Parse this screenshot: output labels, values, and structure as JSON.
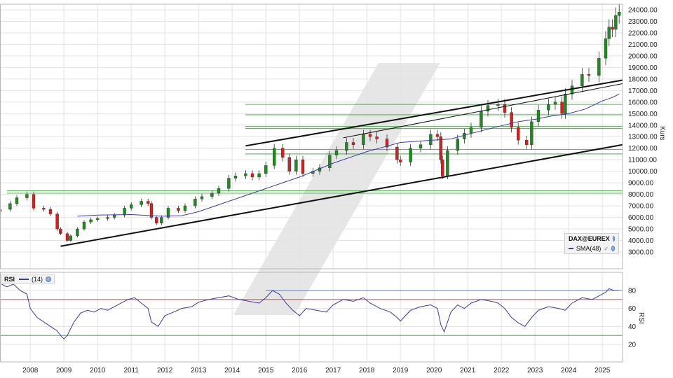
{
  "chart_data": [
    {
      "type": "candlestick",
      "symbol": "DAX@EUREX",
      "ylabel": "Kurs",
      "ylim": [
        2500,
        24500
      ],
      "ytick_labels": [
        "3000.00",
        "4000.00",
        "5000.00",
        "6000.00",
        "7000.00",
        "8000.00",
        "9000.00",
        "10000.00",
        "11000.00",
        "12000.00",
        "13000.00",
        "14000.00",
        "15000.00",
        "16000.00",
        "17000.00",
        "18000.00",
        "19000.00",
        "20000.00",
        "21000.00",
        "22000.00",
        "23000.00",
        "24000.00"
      ],
      "x_tick_labels": [
        "2008",
        "2009",
        "2010",
        "2011",
        "2012",
        "2013",
        "2014",
        "2015",
        "2016",
        "2017",
        "2018",
        "2019",
        "2020",
        "2021",
        "2022",
        "2023",
        "2024",
        "2025"
      ],
      "xlim": [
        2007.1,
        2025.6
      ],
      "legend": {
        "symbol": "DAX@EUREX",
        "sma_label": "SMA(48)"
      },
      "grid": true,
      "legend_position": "bottom-right",
      "price_series": {
        "name": "DAX@EUREX",
        "x": [
          2007.1,
          2007.4,
          2007.6,
          2007.9,
          2008.1,
          2008.4,
          2008.6,
          2008.8,
          2008.9,
          2009.1,
          2009.2,
          2009.4,
          2009.6,
          2009.8,
          2010.0,
          2010.3,
          2010.5,
          2010.8,
          2011.0,
          2011.3,
          2011.5,
          2011.6,
          2011.75,
          2011.9,
          2012.1,
          2012.4,
          2012.6,
          2012.9,
          2013.1,
          2013.4,
          2013.6,
          2013.9,
          2014.1,
          2014.4,
          2014.6,
          2014.8,
          2015.0,
          2015.25,
          2015.5,
          2015.7,
          2015.9,
          2016.1,
          2016.4,
          2016.6,
          2016.9,
          2017.1,
          2017.4,
          2017.6,
          2017.9,
          2018.1,
          2018.3,
          2018.6,
          2018.9,
          2019.0,
          2019.3,
          2019.6,
          2019.9,
          2020.1,
          2020.2,
          2020.25,
          2020.4,
          2020.7,
          2020.9,
          2021.1,
          2021.4,
          2021.6,
          2021.9,
          2022.1,
          2022.3,
          2022.5,
          2022.75,
          2022.9,
          2023.1,
          2023.4,
          2023.6,
          2023.8,
          2023.9,
          2024.1,
          2024.4,
          2024.6,
          2024.9,
          2025.1,
          2025.2,
          2025.3,
          2025.4,
          2025.5
        ],
        "close": [
          6700,
          7200,
          7700,
          8000,
          6800,
          6700,
          6300,
          5000,
          4600,
          4000,
          4400,
          5000,
          5600,
          5800,
          5900,
          6000,
          6200,
          6800,
          7100,
          7400,
          7200,
          6000,
          5500,
          6000,
          6800,
          6600,
          7000,
          7600,
          7800,
          8100,
          8500,
          9400,
          9600,
          9800,
          9500,
          9800,
          10500,
          12000,
          11200,
          10000,
          11000,
          9800,
          10000,
          10300,
          11400,
          11800,
          12500,
          12300,
          13200,
          13000,
          12800,
          12100,
          11000,
          10800,
          12000,
          12300,
          13200,
          13000,
          11000,
          9600,
          11800,
          12800,
          13300,
          13800,
          15200,
          15700,
          15800,
          15100,
          13800,
          12700,
          12300,
          14300,
          15300,
          15800,
          16000,
          15000,
          16700,
          17400,
          18400,
          18300,
          19800,
          21500,
          22500,
          22300,
          23500,
          23800
        ],
        "ytick_labels": [],
        "xlabel": ""
      },
      "sma48": {
        "name": "SMA(48)",
        "x": [
          2009.4,
          2010.0,
          2011.0,
          2011.9,
          2012.5,
          2013.0,
          2014.0,
          2015.0,
          2015.5,
          2016.0,
          2017.0,
          2018.0,
          2018.5,
          2019.0,
          2020.0,
          2020.5,
          2021.0,
          2021.8,
          2022.5,
          2023.0,
          2023.5,
          2024.0,
          2024.5,
          2025.0,
          2025.3,
          2025.5
        ],
        "y": [
          6100,
          6200,
          6250,
          6100,
          6150,
          6500,
          7500,
          8500,
          9000,
          9500,
          10700,
          11700,
          12100,
          12500,
          12700,
          12800,
          13200,
          13800,
          14300,
          14500,
          14800,
          15000,
          15400,
          16100,
          16400,
          16700
        ]
      },
      "trendlines": [
        {
          "from": [
            2008.9,
            3500
          ],
          "to": [
            2025.6,
            12300
          ]
        },
        {
          "from": [
            2014.4,
            12200
          ],
          "to": [
            2025.6,
            17900
          ]
        },
        {
          "from": [
            2017.3,
            12900
          ],
          "to": [
            2025.6,
            17600
          ]
        }
      ],
      "horizontal_levels": [
        8100,
        8300,
        11500,
        11900,
        13700,
        13900,
        14900,
        15800
      ],
      "watermark": "logo"
    },
    {
      "type": "line",
      "title": "RSI",
      "series_label": "(14)",
      "ylim": [
        10,
        95
      ],
      "ytick_labels": [
        "20",
        "40",
        "60",
        "80"
      ],
      "reference_levels": [
        30,
        70
      ],
      "ylabel": "RSI",
      "series": {
        "name": "(14)",
        "x": [
          2007.1,
          2007.3,
          2007.5,
          2007.7,
          2007.9,
          2008.0,
          2008.2,
          2008.4,
          2008.6,
          2008.8,
          2008.9,
          2009.0,
          2009.1,
          2009.3,
          2009.5,
          2009.7,
          2009.9,
          2010.1,
          2010.3,
          2010.5,
          2010.7,
          2010.9,
          2011.1,
          2011.3,
          2011.5,
          2011.6,
          2011.8,
          2012.0,
          2012.2,
          2012.5,
          2012.8,
          2013.0,
          2013.3,
          2013.6,
          2013.9,
          2014.2,
          2014.5,
          2014.8,
          2015.0,
          2015.2,
          2015.4,
          2015.6,
          2015.8,
          2016.0,
          2016.2,
          2016.5,
          2016.8,
          2017.0,
          2017.3,
          2017.6,
          2017.9,
          2018.1,
          2018.4,
          2018.7,
          2018.9,
          2019.0,
          2019.3,
          2019.6,
          2019.9,
          2020.1,
          2020.2,
          2020.3,
          2020.5,
          2020.7,
          2020.9,
          2021.1,
          2021.4,
          2021.7,
          2021.9,
          2022.1,
          2022.3,
          2022.5,
          2022.7,
          2022.9,
          2023.1,
          2023.4,
          2023.7,
          2023.9,
          2024.1,
          2024.4,
          2024.7,
          2024.9,
          2025.1,
          2025.2,
          2025.35,
          2025.5
        ],
        "y": [
          88,
          84,
          87,
          80,
          76,
          60,
          50,
          45,
          40,
          35,
          30,
          26,
          30,
          45,
          55,
          58,
          56,
          60,
          58,
          62,
          66,
          70,
          72,
          66,
          60,
          45,
          40,
          52,
          55,
          60,
          62,
          67,
          70,
          72,
          74,
          70,
          68,
          66,
          72,
          80,
          76,
          66,
          58,
          52,
          60,
          58,
          56,
          64,
          70,
          68,
          72,
          66,
          60,
          56,
          50,
          46,
          58,
          62,
          64,
          60,
          42,
          34,
          56,
          64,
          60,
          66,
          70,
          68,
          66,
          60,
          50,
          44,
          40,
          50,
          58,
          62,
          60,
          58,
          66,
          72,
          70,
          74,
          78,
          82,
          80,
          80
        ]
      }
    }
  ]
}
